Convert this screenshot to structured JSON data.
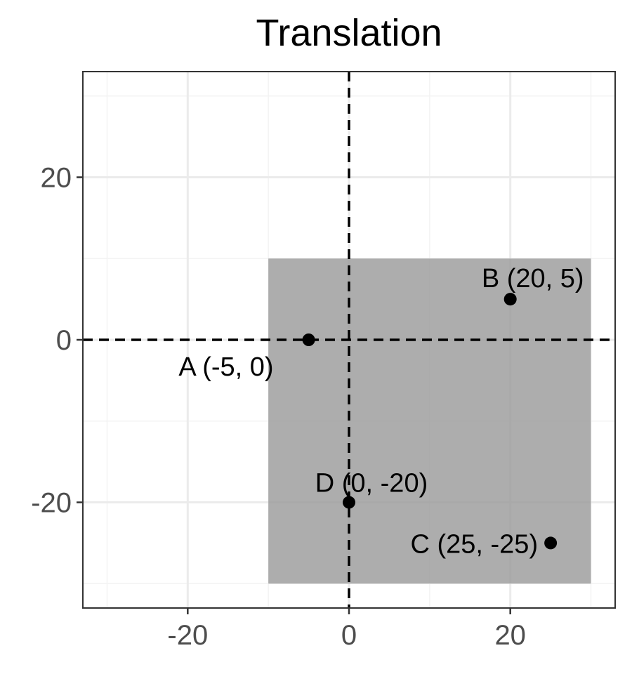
{
  "chart_data": {
    "type": "scatter",
    "title": "Translation",
    "xlabel": "",
    "ylabel": "",
    "xlim": [
      -33,
      33
    ],
    "ylim": [
      -33,
      33
    ],
    "x_ticks": [
      -20,
      0,
      20
    ],
    "y_ticks": [
      -20,
      0,
      20
    ],
    "x_tick_labels": [
      "-20",
      "0",
      "20"
    ],
    "y_tick_labels": [
      "-20",
      "0",
      "20"
    ],
    "grid": true,
    "reference_lines": {
      "x": 0,
      "y": 0,
      "style": "dashed",
      "color": "#000000"
    },
    "shaded_region": {
      "x": [
        -10,
        30
      ],
      "y": [
        -30,
        10
      ],
      "color": "#999999",
      "opacity": 0.8
    },
    "points": [
      {
        "label": "A (-5, 0)",
        "x": -5,
        "y": 0,
        "label_position": "below-left"
      },
      {
        "label": "B (20, 5)",
        "x": 20,
        "y": 5,
        "label_position": "above"
      },
      {
        "label": "C (25, -25)",
        "x": 25,
        "y": -25,
        "label_position": "left"
      },
      {
        "label": "D (0, -20)",
        "x": 0,
        "y": -20,
        "label_position": "above-right"
      }
    ],
    "point_color": "#000000"
  }
}
